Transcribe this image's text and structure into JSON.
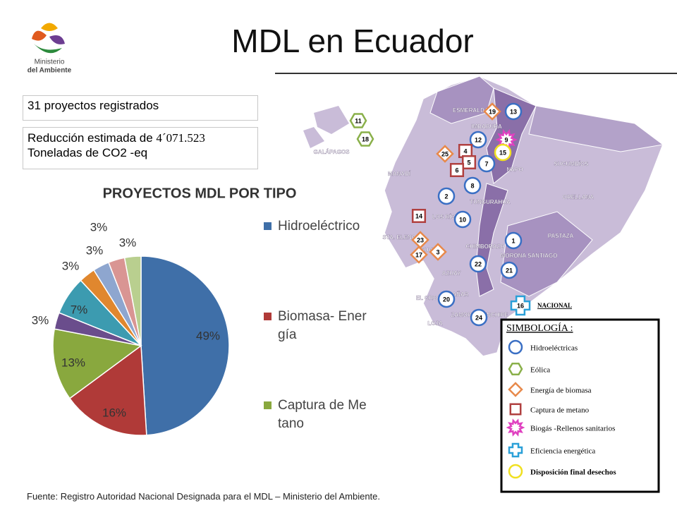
{
  "title": "MDL en Ecuador",
  "logo": {
    "line1": "Ministerio",
    "line2": "del Ambiente"
  },
  "box1": "31 proyectos registrados",
  "box2": {
    "text": "Reducción estimada de",
    "amount": "4´071.523",
    "unit": "Toneladas de CO2 -eq"
  },
  "chart_data": {
    "type": "pie",
    "title": "PROYECTOS MDL POR TIPO",
    "categories": [
      "Hidroeléctrico",
      "Biomasa- Energía",
      "Captura de Metano",
      null,
      null,
      null,
      null,
      null,
      null
    ],
    "values": [
      49,
      16,
      13,
      3,
      7,
      3,
      3,
      3,
      3
    ],
    "value_labels": [
      "49%",
      "16%",
      "13%",
      "3%",
      "7%",
      "3%",
      "3%",
      "3%",
      "3%"
    ],
    "colors": [
      "#3f6fa8",
      "#b03a38",
      "#89a83e",
      "#6a4d8c",
      "#3c9bb0",
      "#e0872e",
      "#8ea6cf",
      "#d99593",
      "#b9cf8f"
    ]
  },
  "map": {
    "regions": [
      "ESMERALDAS",
      "IMBABURA",
      "SUCUMBÍOS",
      "ORELLANA",
      "NAPO",
      "MANABÍ",
      "PASTAZA",
      "TUNGURAHUA",
      "CHIMBORAZO",
      "LOS RÍOS",
      "GUAYAS",
      "STA. ELENA",
      "MORONA SANTIAGO",
      "AZUAY",
      "CAÑAR",
      "EL ORO",
      "LOJA",
      "ZAMORA CHINCHIPE",
      "GALÁPAGOS"
    ],
    "markers": [
      "19",
      "13",
      "12",
      "9",
      "25",
      "4",
      "15",
      "5",
      "7",
      "6",
      "8",
      "2",
      "14",
      "10",
      "23",
      "17",
      "3",
      "1",
      "22",
      "21",
      "20",
      "24",
      "11",
      "18",
      "16"
    ],
    "national": "NACIONAL"
  },
  "symbology": {
    "title": "SIMBOLOGÍA :",
    "items": [
      "Hidroeléctricas",
      "Eólica",
      "Energía de biomasa",
      "Captura de metano",
      "Biogás -Rellenos sanitarios",
      "Eficiencia energética",
      "Disposición final desechos"
    ]
  },
  "source": "Fuente: Registro Autoridad Nacional Designada para el MDL – Ministerio del Ambiente."
}
